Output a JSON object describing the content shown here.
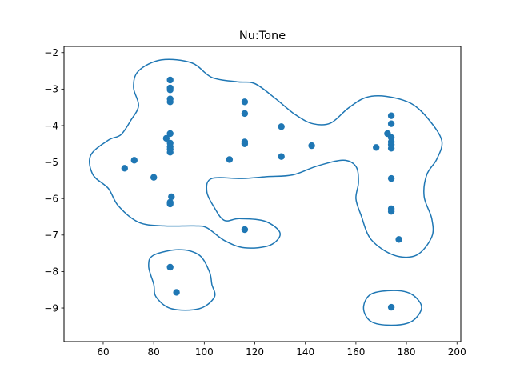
{
  "chart_data": {
    "type": "scatter",
    "title": "Nu:Tone",
    "xlabel": "",
    "ylabel": "",
    "xlim": [
      44.5,
      201.5
    ],
    "ylim": [
      -9.92,
      -1.83
    ],
    "xticks": [
      60,
      80,
      100,
      120,
      140,
      160,
      180,
      200
    ],
    "yticks": [
      -9,
      -8,
      -7,
      -6,
      -5,
      -4,
      -3,
      -2
    ],
    "grid": false,
    "legend": "none",
    "colors": {
      "series": "#1f77b4",
      "axes": "#000000",
      "background": "#ffffff"
    },
    "points": [
      {
        "x": 68.5,
        "y": -5.17
      },
      {
        "x": 72.3,
        "y": -4.95
      },
      {
        "x": 80.0,
        "y": -5.42
      },
      {
        "x": 85.0,
        "y": -4.35
      },
      {
        "x": 86.5,
        "y": -2.75
      },
      {
        "x": 86.5,
        "y": -2.97
      },
      {
        "x": 86.5,
        "y": -3.02
      },
      {
        "x": 86.5,
        "y": -3.27
      },
      {
        "x": 86.5,
        "y": -3.35
      },
      {
        "x": 86.5,
        "y": -4.22
      },
      {
        "x": 86.5,
        "y": -4.48
      },
      {
        "x": 86.5,
        "y": -4.58
      },
      {
        "x": 86.5,
        "y": -4.65
      },
      {
        "x": 86.5,
        "y": -4.73
      },
      {
        "x": 86.5,
        "y": -6.1
      },
      {
        "x": 86.5,
        "y": -6.15
      },
      {
        "x": 87.0,
        "y": -5.95
      },
      {
        "x": 86.5,
        "y": -7.88
      },
      {
        "x": 89.0,
        "y": -8.57
      },
      {
        "x": 110.0,
        "y": -4.93
      },
      {
        "x": 116.0,
        "y": -3.35
      },
      {
        "x": 116.0,
        "y": -3.67
      },
      {
        "x": 116.0,
        "y": -4.45
      },
      {
        "x": 116.0,
        "y": -4.5
      },
      {
        "x": 116.0,
        "y": -6.85
      },
      {
        "x": 130.5,
        "y": -4.03
      },
      {
        "x": 130.5,
        "y": -4.85
      },
      {
        "x": 142.5,
        "y": -4.55
      },
      {
        "x": 168.0,
        "y": -4.6
      },
      {
        "x": 172.5,
        "y": -4.22
      },
      {
        "x": 174.0,
        "y": -3.73
      },
      {
        "x": 174.0,
        "y": -3.95
      },
      {
        "x": 174.0,
        "y": -4.33
      },
      {
        "x": 174.0,
        "y": -4.45
      },
      {
        "x": 174.0,
        "y": -4.52
      },
      {
        "x": 174.0,
        "y": -4.62
      },
      {
        "x": 174.0,
        "y": -5.45
      },
      {
        "x": 174.0,
        "y": -6.28
      },
      {
        "x": 174.0,
        "y": -6.35
      },
      {
        "x": 177.0,
        "y": -7.12
      },
      {
        "x": 174.0,
        "y": -8.98
      }
    ],
    "contours": [
      [
        [
          83,
          -2.2
        ],
        [
          95,
          -2.28
        ],
        [
          103,
          -2.68
        ],
        [
          113,
          -2.8
        ],
        [
          120,
          -2.85
        ],
        [
          128,
          -3.25
        ],
        [
          136,
          -3.7
        ],
        [
          143,
          -3.95
        ],
        [
          150,
          -3.93
        ],
        [
          157,
          -3.52
        ],
        [
          164,
          -3.23
        ],
        [
          172,
          -3.2
        ],
        [
          182,
          -3.4
        ],
        [
          189,
          -3.85
        ],
        [
          194,
          -4.42
        ],
        [
          192,
          -4.92
        ],
        [
          188,
          -5.35
        ],
        [
          187,
          -5.95
        ],
        [
          190,
          -6.55
        ],
        [
          190,
          -7.05
        ],
        [
          184,
          -7.55
        ],
        [
          175,
          -7.55
        ],
        [
          166,
          -7.12
        ],
        [
          162,
          -6.45
        ],
        [
          160,
          -6.0
        ],
        [
          161,
          -5.55
        ],
        [
          160,
          -5.12
        ],
        [
          155,
          -4.95
        ],
        [
          145,
          -5.1
        ],
        [
          135,
          -5.35
        ],
        [
          125,
          -5.4
        ],
        [
          115,
          -5.45
        ],
        [
          103,
          -5.45
        ],
        [
          101,
          -5.8
        ],
        [
          104,
          -6.25
        ],
        [
          108,
          -6.6
        ],
        [
          114,
          -6.55
        ],
        [
          124,
          -6.62
        ],
        [
          130,
          -6.95
        ],
        [
          126,
          -7.28
        ],
        [
          116,
          -7.35
        ],
        [
          108,
          -7.15
        ],
        [
          101,
          -6.8
        ],
        [
          96,
          -6.75
        ],
        [
          84,
          -6.75
        ],
        [
          74,
          -6.65
        ],
        [
          66,
          -6.2
        ],
        [
          62,
          -5.72
        ],
        [
          56,
          -5.35
        ],
        [
          55,
          -4.82
        ],
        [
          62,
          -4.4
        ],
        [
          67,
          -4.25
        ],
        [
          71,
          -3.85
        ],
        [
          74,
          -3.45
        ],
        [
          72,
          -2.95
        ],
        [
          74,
          -2.5
        ]
      ],
      [
        [
          90,
          -7.4
        ],
        [
          98,
          -7.55
        ],
        [
          102,
          -8.0
        ],
        [
          103,
          -8.35
        ],
        [
          104,
          -8.7
        ],
        [
          98,
          -9.02
        ],
        [
          87,
          -9.02
        ],
        [
          81,
          -8.7
        ],
        [
          80,
          -8.35
        ],
        [
          78,
          -7.85
        ],
        [
          80,
          -7.55
        ]
      ],
      [
        [
          175,
          -8.52
        ],
        [
          182,
          -8.62
        ],
        [
          186,
          -8.98
        ],
        [
          182,
          -9.37
        ],
        [
          174,
          -9.47
        ],
        [
          166,
          -9.37
        ],
        [
          163,
          -9.0
        ],
        [
          166,
          -8.62
        ]
      ]
    ]
  }
}
